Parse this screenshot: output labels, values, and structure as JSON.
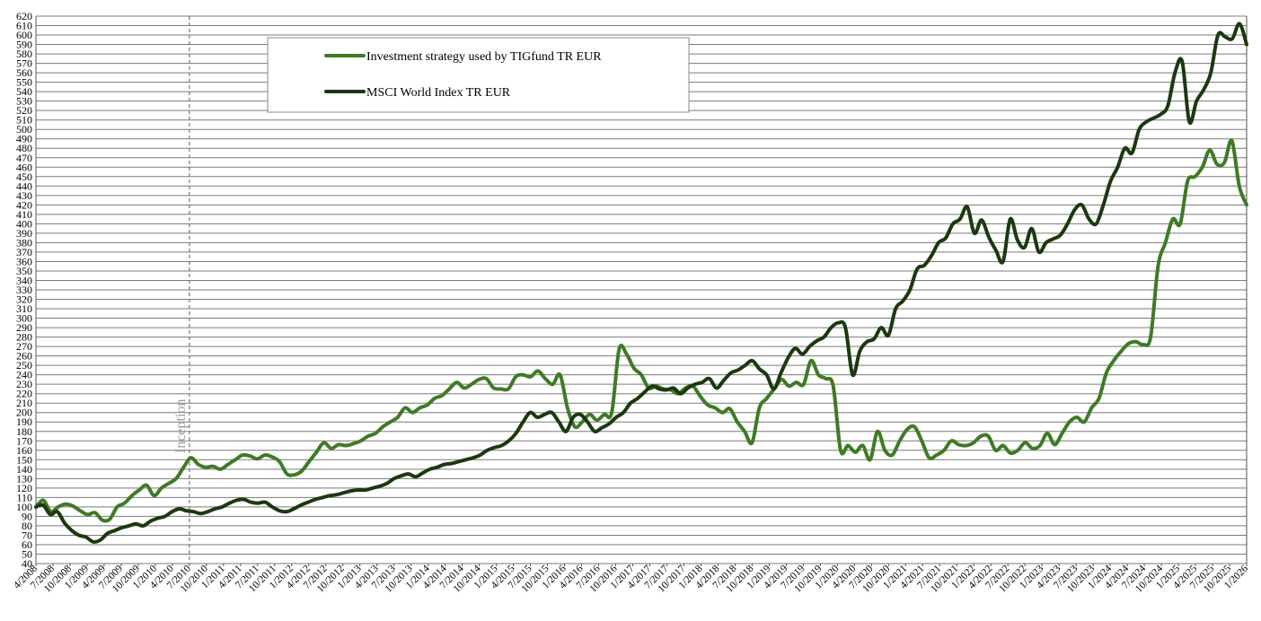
{
  "chart_data": {
    "type": "line",
    "ylim": [
      40,
      620
    ],
    "ytick_step": 10,
    "grid": true,
    "legend_position": "top-center",
    "x_tick_labels": [
      "4/2008",
      "7/2008",
      "10/2008",
      "1/2009",
      "4/2009",
      "7/2009",
      "10/2009",
      "1/2010",
      "4/2010",
      "7/2010",
      "10/2010",
      "1/2011",
      "4/2011",
      "7/2011",
      "10/2011",
      "1/2012",
      "4/2012",
      "7/2012",
      "10/2012",
      "1/2013",
      "4/2013",
      "7/2013",
      "10/2013",
      "1/2014",
      "4/2014",
      "7/2014",
      "10/2014",
      "1/2015",
      "4/2015",
      "7/2015",
      "10/2015",
      "1/2016",
      "4/2016",
      "7/2016",
      "10/2016",
      "1/2017",
      "4/2017",
      "7/2017",
      "10/2017",
      "1/2018",
      "4/2018",
      "7/2018",
      "10/2018",
      "1/2019",
      "4/2019",
      "7/2019",
      "10/2019",
      "1/2020",
      "4/2020",
      "7/2020",
      "10/2020",
      "1/2021",
      "4/2021",
      "7/2021",
      "10/2021",
      "1/2022",
      "4/2022",
      "7/2022",
      "10/2022",
      "1/2023",
      "4/2023",
      "7/2023",
      "10/2023",
      "1/2024",
      "4/2024",
      "7/2024",
      "10/2024",
      "1/2025",
      "4/2025",
      "7/2025",
      "10/2025",
      "1/2026"
    ],
    "annotation": {
      "label": "Inception",
      "x": "7/2010"
    },
    "series": [
      {
        "name": "Investment strategy used by TIGfund TR EUR",
        "color": "#3f7a25",
        "values": [
          100,
          107,
          95,
          100,
          103,
          101,
          96,
          92,
          94,
          86,
          87,
          100,
          104,
          112,
          118,
          123,
          112,
          120,
          125,
          130,
          142,
          152,
          145,
          142,
          143,
          140,
          145,
          150,
          155,
          154,
          151,
          155,
          153,
          148,
          135,
          134,
          138,
          148,
          158,
          168,
          162,
          166,
          165,
          167,
          170,
          175,
          178,
          185,
          190,
          195,
          205,
          200,
          205,
          208,
          215,
          218,
          225,
          232,
          226,
          230,
          235,
          236,
          226,
          225,
          225,
          238,
          240,
          238,
          244,
          236,
          230,
          240,
          205,
          185,
          190,
          198,
          192,
          198,
          200,
          267,
          262,
          247,
          240,
          226,
          228,
          225,
          224,
          220,
          226,
          228,
          217,
          208,
          205,
          200,
          204,
          190,
          180,
          168,
          205,
          215,
          225,
          235,
          228,
          232,
          230,
          255,
          240,
          236,
          228,
          160,
          165,
          158,
          165,
          150,
          180,
          160,
          155,
          170,
          182,
          185,
          170,
          152,
          155,
          160,
          170,
          166,
          165,
          168,
          175,
          175,
          160,
          165,
          157,
          160,
          168,
          162,
          165,
          178,
          166,
          178,
          190,
          195,
          190,
          205,
          215,
          242,
          255,
          265,
          273,
          275,
          272,
          280,
          355,
          380,
          405,
          400,
          445,
          450,
          460,
          478,
          463,
          465,
          488,
          440,
          420
        ]
      },
      {
        "name": "MSCI World Index TR EUR",
        "color": "#1c3810",
        "values": [
          100,
          102,
          92,
          95,
          83,
          75,
          70,
          68,
          63,
          65,
          72,
          75,
          78,
          80,
          82,
          80,
          85,
          88,
          90,
          95,
          98,
          96,
          95,
          93,
          95,
          98,
          100,
          104,
          107,
          108,
          105,
          104,
          105,
          100,
          96,
          95,
          98,
          102,
          105,
          108,
          110,
          112,
          113,
          115,
          117,
          118,
          118,
          120,
          122,
          125,
          130,
          133,
          135,
          132,
          136,
          140,
          142,
          145,
          146,
          148,
          150,
          152,
          155,
          160,
          163,
          165,
          170,
          178,
          190,
          200,
          195,
          198,
          200,
          190,
          180,
          195,
          198,
          190,
          180,
          184,
          188,
          195,
          200,
          210,
          215,
          222,
          228,
          225,
          224,
          226,
          220,
          226,
          230,
          232,
          236,
          226,
          234,
          242,
          245,
          250,
          255,
          246,
          240,
          225,
          242,
          258,
          268,
          262,
          270,
          276,
          280,
          290,
          295,
          290,
          240,
          265,
          275,
          278,
          290,
          282,
          310,
          318,
          330,
          352,
          356,
          366,
          380,
          385,
          400,
          405,
          418,
          390,
          404,
          386,
          372,
          360,
          405,
          383,
          375,
          395,
          370,
          380,
          384,
          388,
          400,
          415,
          420,
          405,
          400,
          420,
          445,
          460,
          480,
          475,
          500,
          508,
          512,
          516,
          525,
          560,
          572,
          508,
          530,
          542,
          560,
          600,
          598,
          596,
          612,
          590
        ]
      }
    ]
  }
}
